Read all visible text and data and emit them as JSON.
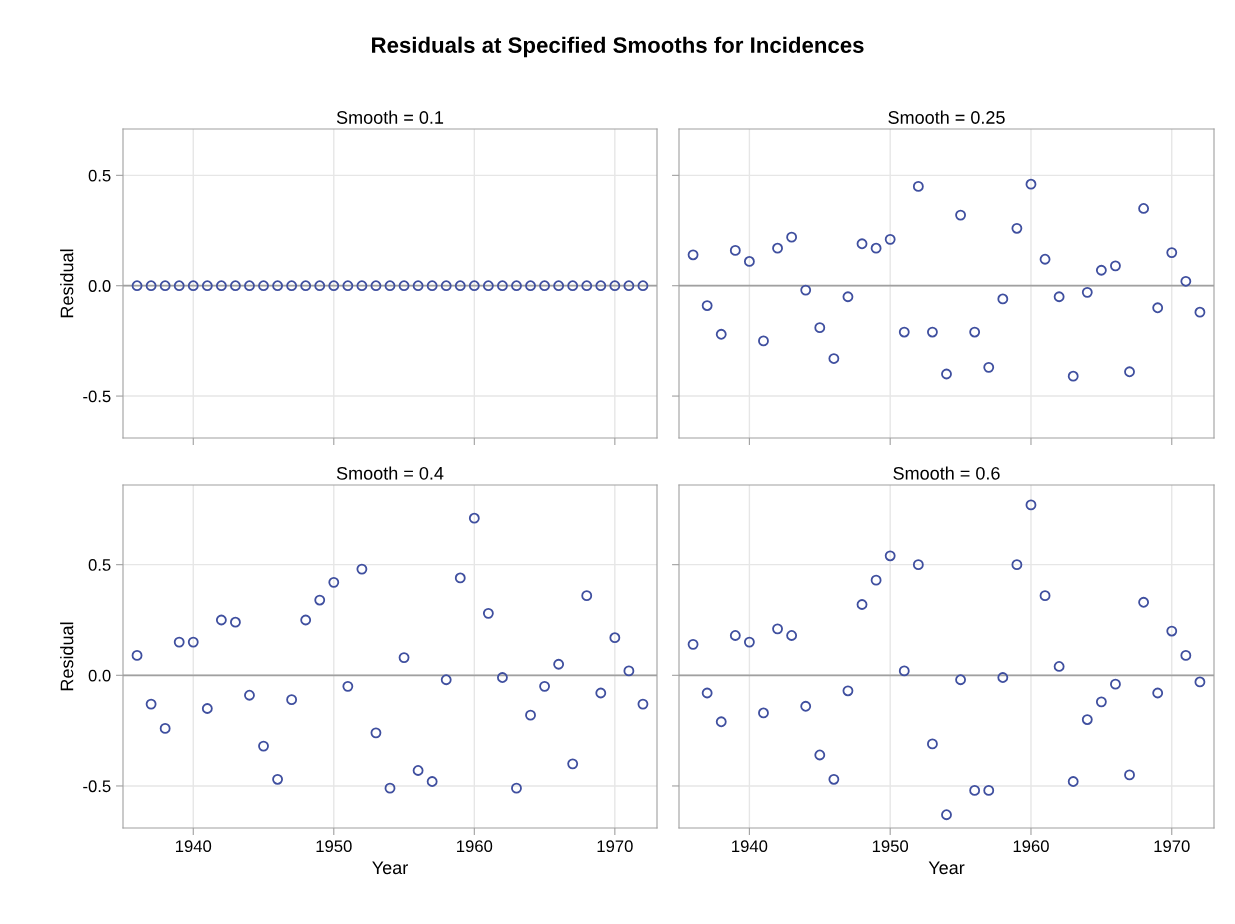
{
  "chart_data": [
    {
      "type": "scatter",
      "subtitle": "Smooth = 0.1",
      "annotations": [
        "Residuals at Specified Smooths for Incidences"
      ],
      "ylabel": "Residual",
      "x": [
        1936,
        1937,
        1938,
        1939,
        1940,
        1941,
        1942,
        1943,
        1944,
        1945,
        1946,
        1947,
        1948,
        1949,
        1950,
        1951,
        1952,
        1953,
        1954,
        1955,
        1956,
        1957,
        1958,
        1959,
        1960,
        1961,
        1962,
        1963,
        1964,
        1965,
        1966,
        1967,
        1968,
        1969,
        1970,
        1971,
        1972
      ],
      "series": [
        {
          "color": "#3f4f9f",
          "values": [
            0,
            0,
            0,
            0,
            0,
            0,
            0,
            0,
            0,
            0,
            0,
            0,
            0,
            0,
            0,
            0,
            0,
            0,
            0,
            0,
            0,
            0,
            0,
            0,
            0,
            0,
            0,
            0,
            0,
            0,
            0,
            0,
            0,
            0,
            0,
            0,
            0
          ]
        }
      ],
      "xlim": [
        1935,
        1973
      ],
      "xticks": [
        1940,
        1950,
        1960,
        1970
      ],
      "ylim": [
        -0.69,
        0.71
      ],
      "yticks": [
        -0.5,
        {
          "value": 0,
          "label": "0.0"
        },
        0.5
      ],
      "tick_labels": "y",
      "grid": true,
      "marker": "circle",
      "ref_lines": [
        {
          "axis": "y",
          "value": 0,
          "color": "#a0a0a0"
        }
      ]
    },
    {
      "type": "scatter",
      "subtitle": "Smooth = 0.25",
      "x": [
        1936,
        1937,
        1938,
        1939,
        1940,
        1941,
        1942,
        1943,
        1944,
        1945,
        1946,
        1947,
        1948,
        1949,
        1950,
        1951,
        1952,
        1953,
        1954,
        1955,
        1956,
        1957,
        1958,
        1959,
        1960,
        1961,
        1962,
        1963,
        1964,
        1965,
        1966,
        1967,
        1968,
        1969,
        1970,
        1971,
        1972
      ],
      "series": [
        {
          "color": "#3f4f9f",
          "values": [
            0.14,
            -0.09,
            -0.22,
            0.16,
            0.11,
            -0.25,
            0.17,
            0.22,
            -0.02,
            -0.19,
            -0.33,
            -0.05,
            0.19,
            0.17,
            0.21,
            -0.21,
            0.45,
            -0.21,
            -0.4,
            0.32,
            -0.21,
            -0.37,
            -0.06,
            0.26,
            0.46,
            0.12,
            -0.05,
            -0.41,
            -0.03,
            0.07,
            0.09,
            -0.39,
            0.35,
            -0.1,
            0.15,
            0.02,
            -0.12
          ]
        }
      ],
      "xlim": [
        1935,
        1973
      ],
      "xticks": [
        1940,
        1950,
        1960,
        1970
      ],
      "ylim": [
        -0.69,
        0.71
      ],
      "yticks": [
        -0.5,
        0,
        0.5
      ],
      "tick_labels": false,
      "grid": true,
      "marker": "circle",
      "ref_lines": [
        {
          "axis": "y",
          "value": 0,
          "color": "#a0a0a0"
        }
      ]
    },
    {
      "type": "scatter",
      "subtitle": "Smooth = 0.4",
      "xlabel": "Year",
      "ylabel": "Residual",
      "x": [
        1936,
        1937,
        1938,
        1939,
        1940,
        1941,
        1942,
        1943,
        1944,
        1945,
        1946,
        1947,
        1948,
        1949,
        1950,
        1951,
        1952,
        1953,
        1954,
        1955,
        1956,
        1957,
        1958,
        1959,
        1960,
        1961,
        1962,
        1963,
        1964,
        1965,
        1966,
        1967,
        1968,
        1969,
        1970,
        1971,
        1972
      ],
      "series": [
        {
          "color": "#3f4f9f",
          "values": [
            0.09,
            -0.13,
            -0.24,
            0.15,
            0.15,
            -0.15,
            0.25,
            0.24,
            -0.09,
            -0.32,
            -0.47,
            -0.11,
            0.25,
            0.34,
            0.42,
            -0.05,
            0.48,
            -0.26,
            -0.51,
            0.08,
            -0.43,
            -0.48,
            -0.02,
            0.44,
            0.71,
            0.28,
            -0.01,
            -0.51,
            -0.18,
            -0.05,
            0.05,
            -0.4,
            0.36,
            -0.08,
            0.17,
            0.02,
            -0.13
          ]
        }
      ],
      "xlim": [
        1935,
        1973
      ],
      "xticks": [
        1940,
        1950,
        1960,
        1970
      ],
      "ylim": [
        -0.69,
        0.86
      ],
      "yticks": [
        -0.5,
        {
          "value": 0,
          "label": "0.0"
        },
        0.5
      ],
      "grid": true,
      "marker": "circle",
      "ref_lines": [
        {
          "axis": "y",
          "value": 0,
          "color": "#a0a0a0"
        }
      ]
    },
    {
      "type": "scatter",
      "subtitle": "Smooth = 0.6",
      "xlabel": "Year",
      "x": [
        1936,
        1937,
        1938,
        1939,
        1940,
        1941,
        1942,
        1943,
        1944,
        1945,
        1946,
        1947,
        1948,
        1949,
        1950,
        1951,
        1952,
        1953,
        1954,
        1955,
        1956,
        1957,
        1958,
        1959,
        1960,
        1961,
        1962,
        1963,
        1964,
        1965,
        1966,
        1967,
        1968,
        1969,
        1970,
        1971,
        1972
      ],
      "series": [
        {
          "color": "#3f4f9f",
          "values": [
            0.14,
            -0.08,
            -0.21,
            0.18,
            0.15,
            -0.17,
            0.21,
            0.18,
            -0.14,
            -0.36,
            -0.47,
            -0.07,
            0.32,
            0.43,
            0.54,
            0.02,
            0.5,
            -0.31,
            -0.63,
            -0.02,
            -0.52,
            -0.52,
            -0.01,
            0.5,
            0.77,
            0.36,
            0.04,
            -0.48,
            -0.2,
            -0.12,
            -0.04,
            -0.45,
            0.33,
            -0.08,
            0.2,
            0.09,
            -0.03
          ]
        }
      ],
      "xlim": [
        1935,
        1973
      ],
      "xticks": [
        1940,
        1950,
        1960,
        1970
      ],
      "ylim": [
        -0.69,
        0.86
      ],
      "yticks": [
        -0.5,
        0,
        0.5
      ],
      "tick_labels": "x",
      "grid": true,
      "marker": "circle",
      "ref_lines": [
        {
          "axis": "y",
          "value": 0,
          "color": "#a0a0a0"
        }
      ]
    }
  ]
}
